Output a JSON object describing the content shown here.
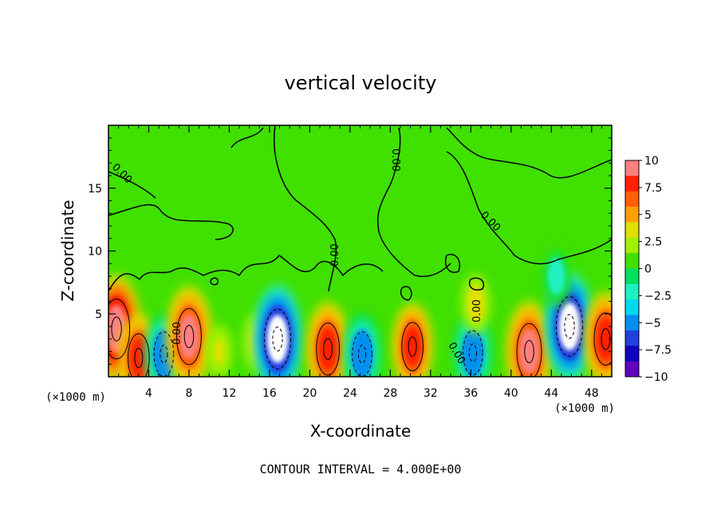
{
  "chart_data": {
    "type": "heatmap",
    "title": "vertical velocity",
    "xlabel": "X-coordinate",
    "ylabel": "Z-coordinate",
    "x_unit": "(×1000 m)",
    "x_unit_right": "(×1000 m)",
    "xlim": [
      0,
      50
    ],
    "ylim": [
      0,
      20
    ],
    "x_ticks": [
      4,
      8,
      12,
      16,
      20,
      24,
      28,
      32,
      36,
      40,
      44,
      48
    ],
    "y_ticks": [
      5,
      10,
      15
    ],
    "contour_interval_text": "CONTOUR INTERVAL = 4.000E+00",
    "contour_labels": [
      "0.00",
      "0.00",
      "0.00",
      "0.00",
      "0.00",
      "0.00",
      "0.00"
    ],
    "colorbar": {
      "labels": [
        "10",
        "7.5",
        "5",
        "2.5",
        "0",
        "−2.5",
        "−5",
        "−7.5",
        "−10"
      ],
      "colors": [
        "#ff8080",
        "#ff2000",
        "#ff6000",
        "#ffa000",
        "#e0e000",
        "#a0f000",
        "#40e000",
        "#00e060",
        "#20f0c0",
        "#00d8f0",
        "#0090f0",
        "#2040e0",
        "#1000c0",
        "#6000c0"
      ]
    },
    "features": [
      {
        "x": 0.8,
        "z": 3.8,
        "w": 10
      },
      {
        "x": 3.0,
        "z": 1.5,
        "w": 7
      },
      {
        "x": 5.5,
        "z": 1.8,
        "w": -6
      },
      {
        "x": 8.0,
        "z": 3.2,
        "w": 9
      },
      {
        "x": 11.0,
        "z": 2.0,
        "w": 2
      },
      {
        "x": 14.8,
        "z": 2.8,
        "w": 3
      },
      {
        "x": 16.8,
        "z": 3.0,
        "w": -10
      },
      {
        "x": 21.8,
        "z": 2.2,
        "w": 8
      },
      {
        "x": 25.2,
        "z": 1.8,
        "w": -6
      },
      {
        "x": 30.2,
        "z": 2.4,
        "w": 7
      },
      {
        "x": 36.2,
        "z": 1.9,
        "w": -6
      },
      {
        "x": 41.8,
        "z": 2.0,
        "w": 9
      },
      {
        "x": 45.8,
        "z": 4.0,
        "w": -10
      },
      {
        "x": 49.4,
        "z": 3.0,
        "w": 8
      },
      {
        "x": 36.5,
        "z": 5.8,
        "w": 3
      },
      {
        "x": 44.5,
        "z": 8.0,
        "w": -3
      }
    ]
  }
}
